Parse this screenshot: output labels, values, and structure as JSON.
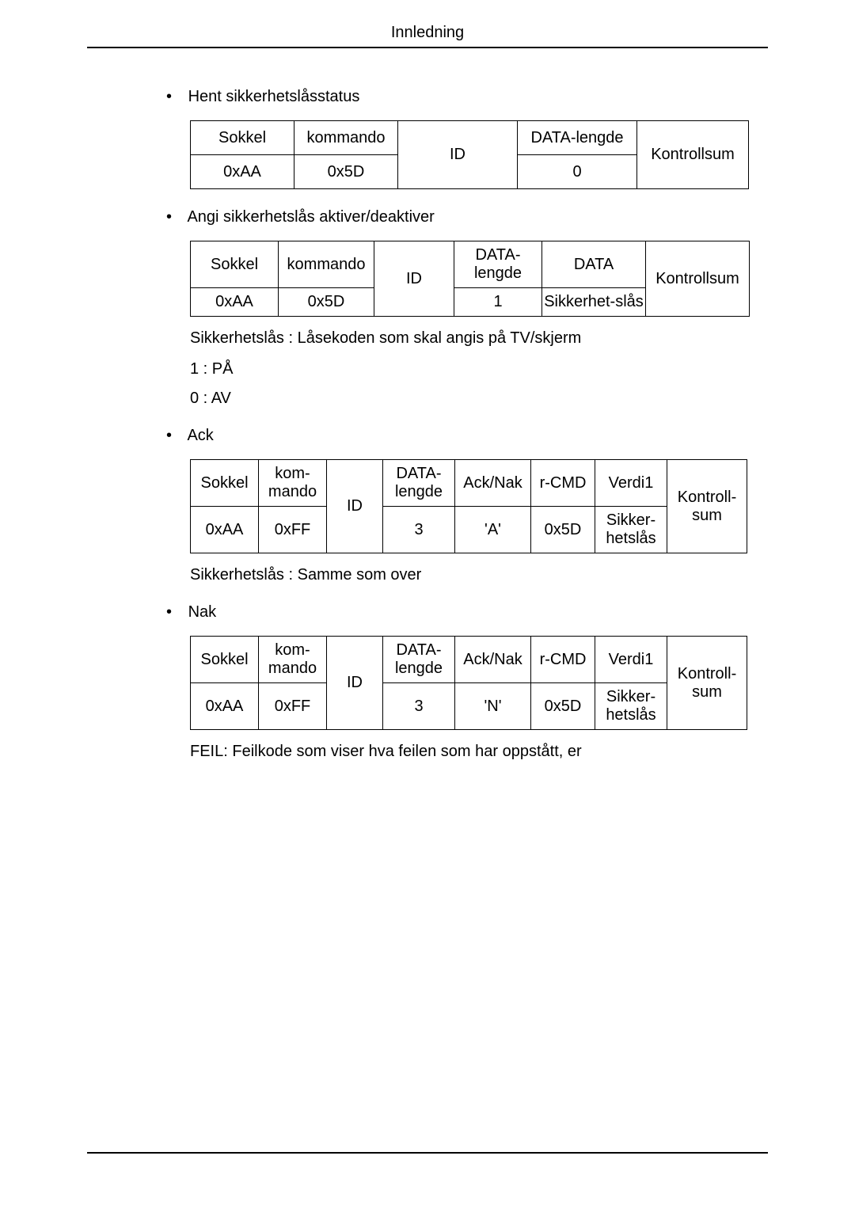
{
  "header": {
    "title": "Innledning"
  },
  "sections": {
    "s1": {
      "bullet": "Hent sikkerhetslåsstatus",
      "table": {
        "r0": [
          "Sokkel",
          "kommando",
          "ID",
          "DATA-lengde",
          "Kontrollsum"
        ],
        "r1": [
          "0xAA",
          "0x5D",
          "0"
        ]
      }
    },
    "s2": {
      "bullet": "Angi sikkerhetslås aktiver/deaktiver",
      "table": {
        "r0": [
          "Sokkel",
          "kommando",
          "ID",
          "DATA-lengde",
          "DATA",
          "Kontrollsum"
        ],
        "r1": [
          "0xAA",
          "0x5D",
          "1",
          "Sikkerhet-slås"
        ]
      },
      "note1": "Sikkerhetslås : Låsekoden som skal angis på TV/skjerm",
      "note2": "1 : PÅ",
      "note3": "0 : AV"
    },
    "s3": {
      "bullet": "Ack",
      "table": {
        "r0": [
          "Sokkel",
          "kom-mando",
          "ID",
          "DATA-lengde",
          "Ack/Nak",
          "r-CMD",
          "Verdi1",
          "Kontroll-sum"
        ],
        "r1": [
          "0xAA",
          "0xFF",
          "3",
          "'A'",
          "0x5D",
          "Sikker-hetslås"
        ]
      },
      "note1": "Sikkerhetslås : Samme som over"
    },
    "s4": {
      "bullet": "Nak",
      "table": {
        "r0": [
          "Sokkel",
          "kom-mando",
          "ID",
          "DATA-lengde",
          "Ack/Nak",
          "r-CMD",
          "Verdi1",
          "Kontroll-sum"
        ],
        "r1": [
          "0xAA",
          "0xFF",
          "3",
          "'N'",
          "0x5D",
          "Sikker-hetslås"
        ]
      },
      "note1": "FEIL: Feilkode som viser hva feilen som har oppstått, er"
    }
  }
}
